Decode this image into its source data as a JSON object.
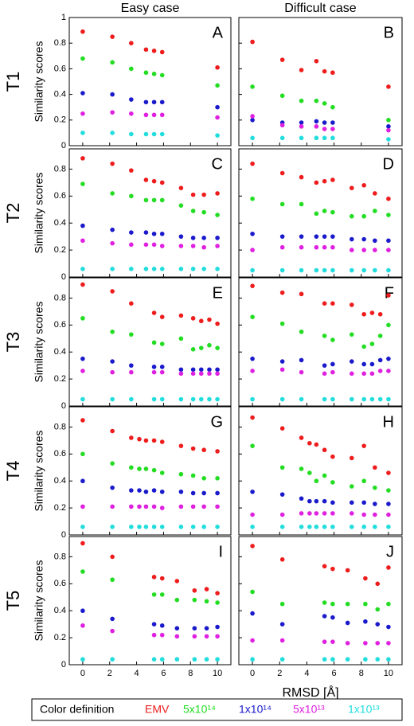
{
  "columns": [
    "Easy case",
    "Difficult case"
  ],
  "rows": [
    "T1",
    "T2",
    "T3",
    "T4",
    "T5"
  ],
  "y_label": "Similarity scores",
  "x_label": "RMSD [Å]",
  "legend": {
    "title": "Color definition",
    "entries": [
      {
        "name": "EMV",
        "color": "#ee1c1c"
      },
      {
        "name": "5x10¹⁴",
        "color": "#22dd22"
      },
      {
        "name": "1x10¹⁴",
        "color": "#1a1acc"
      },
      {
        "name": "5x10¹³",
        "color": "#e020e0"
      },
      {
        "name": "1x10¹³",
        "color": "#22dddd"
      }
    ]
  },
  "chart_data": [
    {
      "type": "scatter",
      "label": "A",
      "xlim": [
        -1,
        11
      ],
      "ylim": [
        0,
        1
      ],
      "xticks": [
        0,
        2,
        4,
        6,
        8,
        10
      ],
      "yticks": [
        0,
        0.2,
        0.4,
        0.6,
        0.8,
        1
      ],
      "x": [
        0,
        2.2,
        3.6,
        4.7,
        5.3,
        5.9,
        10
      ],
      "series": [
        {
          "values": [
            0.89,
            0.85,
            0.8,
            0.75,
            0.74,
            0.73,
            0.61
          ]
        },
        {
          "values": [
            0.68,
            0.65,
            0.6,
            0.57,
            0.56,
            0.55,
            0.47
          ]
        },
        {
          "values": [
            0.41,
            0.4,
            0.36,
            0.34,
            0.34,
            0.34,
            0.3
          ]
        },
        {
          "values": [
            0.25,
            0.26,
            0.25,
            0.24,
            0.24,
            0.24,
            0.22
          ]
        },
        {
          "values": [
            0.1,
            0.1,
            0.09,
            0.09,
            0.09,
            0.09,
            0.08
          ]
        }
      ]
    },
    {
      "type": "scatter",
      "label": "B",
      "xlim": [
        -1,
        11
      ],
      "ylim": [
        0,
        1
      ],
      "xticks": [
        0,
        2,
        4,
        6,
        8,
        10
      ],
      "yticks": [
        0,
        0.2,
        0.4,
        0.6,
        0.8,
        1
      ],
      "x": [
        0,
        2.2,
        3.6,
        4.7,
        5.3,
        5.9,
        10
      ],
      "series": [
        {
          "values": [
            0.81,
            0.67,
            0.59,
            0.66,
            0.58,
            0.57,
            0.46
          ]
        },
        {
          "values": [
            0.46,
            0.39,
            0.35,
            0.35,
            0.33,
            0.3,
            0.2
          ]
        },
        {
          "values": [
            0.2,
            0.18,
            0.18,
            0.19,
            0.18,
            0.18,
            0.15
          ]
        },
        {
          "values": [
            0.23,
            0.16,
            0.15,
            0.15,
            0.13,
            0.13,
            0.12
          ]
        },
        {
          "values": [
            0.06,
            0.06,
            0.06,
            0.06,
            0.06,
            0.06,
            0.05
          ]
        }
      ]
    },
    {
      "type": "scatter",
      "label": "C",
      "xlim": [
        -1,
        11
      ],
      "ylim": [
        0,
        0.95
      ],
      "xticks": [
        0,
        2,
        4,
        6,
        8,
        10
      ],
      "yticks": [
        0,
        0.2,
        0.4,
        0.6,
        0.8
      ],
      "x": [
        0,
        2.2,
        3.6,
        4.7,
        5.3,
        5.9,
        7.3,
        8.2,
        9,
        10
      ],
      "series": [
        {
          "values": [
            0.88,
            0.84,
            0.79,
            0.72,
            0.71,
            0.7,
            0.66,
            0.61,
            0.61,
            0.62
          ]
        },
        {
          "values": [
            0.69,
            0.62,
            0.6,
            0.57,
            0.57,
            0.57,
            0.53,
            0.49,
            0.48,
            0.46
          ]
        },
        {
          "values": [
            0.38,
            0.35,
            0.33,
            0.33,
            0.32,
            0.32,
            0.3,
            0.29,
            0.29,
            0.29
          ]
        },
        {
          "values": [
            0.27,
            0.25,
            0.24,
            0.24,
            0.24,
            0.23,
            0.23,
            0.23,
            0.22,
            0.23
          ]
        },
        {
          "values": [
            0.06,
            0.06,
            0.06,
            0.06,
            0.06,
            0.06,
            0.06,
            0.06,
            0.06,
            0.06
          ]
        }
      ]
    },
    {
      "type": "scatter",
      "label": "D",
      "xlim": [
        -1,
        11
      ],
      "ylim": [
        0,
        0.95
      ],
      "xticks": [
        0,
        2,
        4,
        6,
        8,
        10
      ],
      "yticks": [
        0,
        0.2,
        0.4,
        0.6,
        0.8
      ],
      "x": [
        0,
        2.2,
        3.6,
        4.7,
        5.3,
        5.9,
        7.3,
        8.2,
        9,
        10
      ],
      "series": [
        {
          "values": [
            0.84,
            0.77,
            0.74,
            0.7,
            0.71,
            0.72,
            0.66,
            0.68,
            0.62,
            0.58
          ]
        },
        {
          "values": [
            0.58,
            0.54,
            0.54,
            0.47,
            0.49,
            0.48,
            0.45,
            0.45,
            0.49,
            0.46
          ]
        },
        {
          "values": [
            0.32,
            0.3,
            0.3,
            0.3,
            0.3,
            0.3,
            0.28,
            0.28,
            0.27,
            0.27
          ]
        },
        {
          "values": [
            0.2,
            0.22,
            0.22,
            0.22,
            0.22,
            0.22,
            0.2,
            0.2,
            0.2,
            0.2
          ]
        },
        {
          "values": [
            0.05,
            0.05,
            0.05,
            0.05,
            0.05,
            0.05,
            0.05,
            0.05,
            0.05,
            0.05
          ]
        }
      ]
    },
    {
      "type": "scatter",
      "label": "E",
      "xlim": [
        -1,
        11
      ],
      "ylim": [
        0,
        0.95
      ],
      "xticks": [
        0,
        2,
        4,
        6,
        8,
        10
      ],
      "yticks": [
        0,
        0.2,
        0.4,
        0.6,
        0.8
      ],
      "x": [
        0,
        2.2,
        3.6,
        5.3,
        5.9,
        7.3,
        8.2,
        8.8,
        9.4,
        10
      ],
      "series": [
        {
          "values": [
            0.9,
            0.85,
            0.76,
            0.69,
            0.66,
            0.67,
            0.65,
            0.63,
            0.64,
            0.61
          ]
        },
        {
          "values": [
            0.65,
            0.55,
            0.53,
            0.47,
            0.46,
            0.5,
            0.42,
            0.43,
            0.45,
            0.43
          ]
        },
        {
          "values": [
            0.35,
            0.33,
            0.3,
            0.29,
            0.29,
            0.27,
            0.27,
            0.27,
            0.27,
            0.27
          ]
        },
        {
          "values": [
            0.26,
            0.25,
            0.25,
            0.25,
            0.25,
            0.24,
            0.24,
            0.24,
            0.24,
            0.24
          ]
        },
        {
          "values": [
            0.05,
            0.05,
            0.05,
            0.05,
            0.05,
            0.05,
            0.05,
            0.05,
            0.05,
            0.05
          ]
        }
      ]
    },
    {
      "type": "scatter",
      "label": "F",
      "xlim": [
        -1,
        11
      ],
      "ylim": [
        0,
        0.95
      ],
      "xticks": [
        0,
        2,
        4,
        6,
        8,
        10
      ],
      "yticks": [
        0,
        0.2,
        0.4,
        0.6,
        0.8
      ],
      "x": [
        0,
        2.2,
        3.6,
        5.3,
        5.9,
        7.3,
        8.2,
        8.8,
        9.4,
        10
      ],
      "series": [
        {
          "values": [
            0.89,
            0.84,
            0.83,
            0.76,
            0.76,
            0.75,
            0.68,
            0.69,
            0.68,
            0.82
          ]
        },
        {
          "values": [
            0.66,
            0.61,
            0.55,
            0.52,
            0.49,
            0.53,
            0.44,
            0.46,
            0.52,
            0.6
          ]
        },
        {
          "values": [
            0.35,
            0.33,
            0.34,
            0.3,
            0.31,
            0.33,
            0.31,
            0.31,
            0.34,
            0.35
          ]
        },
        {
          "values": [
            0.26,
            0.27,
            0.25,
            0.24,
            0.25,
            0.24,
            0.24,
            0.24,
            0.26,
            0.26
          ]
        },
        {
          "values": [
            0.05,
            0.05,
            0.05,
            0.05,
            0.05,
            0.05,
            0.05,
            0.05,
            0.05,
            0.05
          ]
        }
      ]
    },
    {
      "type": "scatter",
      "label": "G",
      "xlim": [
        -1,
        11
      ],
      "ylim": [
        0,
        0.95
      ],
      "xticks": [
        0,
        2,
        4,
        6,
        8,
        10
      ],
      "yticks": [
        0,
        0.2,
        0.4,
        0.6,
        0.8
      ],
      "x": [
        0,
        2.2,
        3.6,
        4.2,
        4.7,
        5.3,
        5.9,
        7.3,
        8.2,
        9,
        10
      ],
      "series": [
        {
          "values": [
            0.85,
            0.77,
            0.72,
            0.71,
            0.7,
            0.7,
            0.69,
            0.66,
            0.64,
            0.63,
            0.62
          ]
        },
        {
          "values": [
            0.6,
            0.53,
            0.5,
            0.49,
            0.49,
            0.48,
            0.46,
            0.45,
            0.44,
            0.42,
            0.42
          ]
        },
        {
          "values": [
            0.4,
            0.35,
            0.33,
            0.33,
            0.32,
            0.33,
            0.32,
            0.32,
            0.31,
            0.31,
            0.31
          ]
        },
        {
          "values": [
            0.21,
            0.21,
            0.21,
            0.21,
            0.21,
            0.21,
            0.2,
            0.21,
            0.21,
            0.21,
            0.21
          ]
        },
        {
          "values": [
            0.06,
            0.06,
            0.06,
            0.06,
            0.06,
            0.06,
            0.06,
            0.06,
            0.06,
            0.06,
            0.06
          ]
        }
      ]
    },
    {
      "type": "scatter",
      "label": "H",
      "xlim": [
        -1,
        11
      ],
      "ylim": [
        0,
        0.95
      ],
      "xticks": [
        0,
        2,
        4,
        6,
        8,
        10
      ],
      "yticks": [
        0,
        0.2,
        0.4,
        0.6,
        0.8
      ],
      "x": [
        0,
        2.2,
        3.6,
        4.2,
        4.7,
        5.3,
        5.9,
        7.3,
        8.2,
        9,
        10
      ],
      "series": [
        {
          "values": [
            0.87,
            0.79,
            0.72,
            0.68,
            0.67,
            0.63,
            0.58,
            0.57,
            0.66,
            0.5,
            0.46
          ]
        },
        {
          "values": [
            0.66,
            0.5,
            0.49,
            0.46,
            0.4,
            0.44,
            0.39,
            0.36,
            0.4,
            0.35,
            0.33
          ]
        },
        {
          "values": [
            0.32,
            0.3,
            0.27,
            0.25,
            0.25,
            0.25,
            0.24,
            0.24,
            0.24,
            0.23,
            0.23
          ]
        },
        {
          "values": [
            0.15,
            0.15,
            0.16,
            0.16,
            0.16,
            0.16,
            0.16,
            0.16,
            0.15,
            0.15,
            0.15
          ]
        },
        {
          "values": [
            0.06,
            0.06,
            0.06,
            0.06,
            0.06,
            0.06,
            0.06,
            0.06,
            0.06,
            0.06,
            0.06
          ]
        }
      ]
    },
    {
      "type": "scatter",
      "label": "I",
      "xlim": [
        -1,
        11
      ],
      "ylim": [
        0,
        0.95
      ],
      "xticks": [
        0,
        2,
        4,
        6,
        8,
        10
      ],
      "yticks": [
        0,
        0.2,
        0.4,
        0.6,
        0.8
      ],
      "x": [
        0,
        2.2,
        5.3,
        5.9,
        7,
        8.3,
        9.2,
        10
      ],
      "series": [
        {
          "values": [
            0.9,
            0.8,
            0.65,
            0.64,
            0.62,
            0.55,
            0.56,
            0.53
          ]
        },
        {
          "values": [
            0.69,
            0.63,
            0.52,
            0.52,
            0.48,
            0.48,
            0.47,
            0.46
          ]
        },
        {
          "values": [
            0.4,
            0.34,
            0.3,
            0.29,
            0.27,
            0.27,
            0.27,
            0.28
          ]
        },
        {
          "values": [
            0.29,
            0.25,
            0.22,
            0.22,
            0.21,
            0.21,
            0.21,
            0.21
          ]
        },
        {
          "values": [
            0.04,
            0.04,
            0.04,
            0.04,
            0.04,
            0.04,
            0.04,
            0.04
          ]
        }
      ]
    },
    {
      "type": "scatter",
      "label": "J",
      "xlim": [
        -1,
        11
      ],
      "ylim": [
        0,
        0.95
      ],
      "xticks": [
        0,
        2,
        4,
        6,
        8,
        10
      ],
      "yticks": [
        0,
        0.2,
        0.4,
        0.6,
        0.8
      ],
      "x": [
        0,
        2.2,
        5.3,
        5.9,
        7,
        8.3,
        9.2,
        10
      ],
      "series": [
        {
          "values": [
            0.88,
            0.78,
            0.73,
            0.71,
            0.7,
            0.64,
            0.6,
            0.72
          ]
        },
        {
          "values": [
            0.54,
            0.45,
            0.46,
            0.45,
            0.45,
            0.45,
            0.41,
            0.45
          ]
        },
        {
          "values": [
            0.38,
            0.3,
            0.36,
            0.35,
            0.31,
            0.32,
            0.3,
            0.28
          ]
        },
        {
          "values": [
            0.18,
            0.18,
            0.17,
            0.17,
            0.16,
            0.16,
            0.16,
            0.16
          ]
        },
        {
          "values": [
            0.04,
            0.04,
            0.04,
            0.04,
            0.04,
            0.04,
            0.04,
            0.04
          ]
        }
      ]
    }
  ]
}
